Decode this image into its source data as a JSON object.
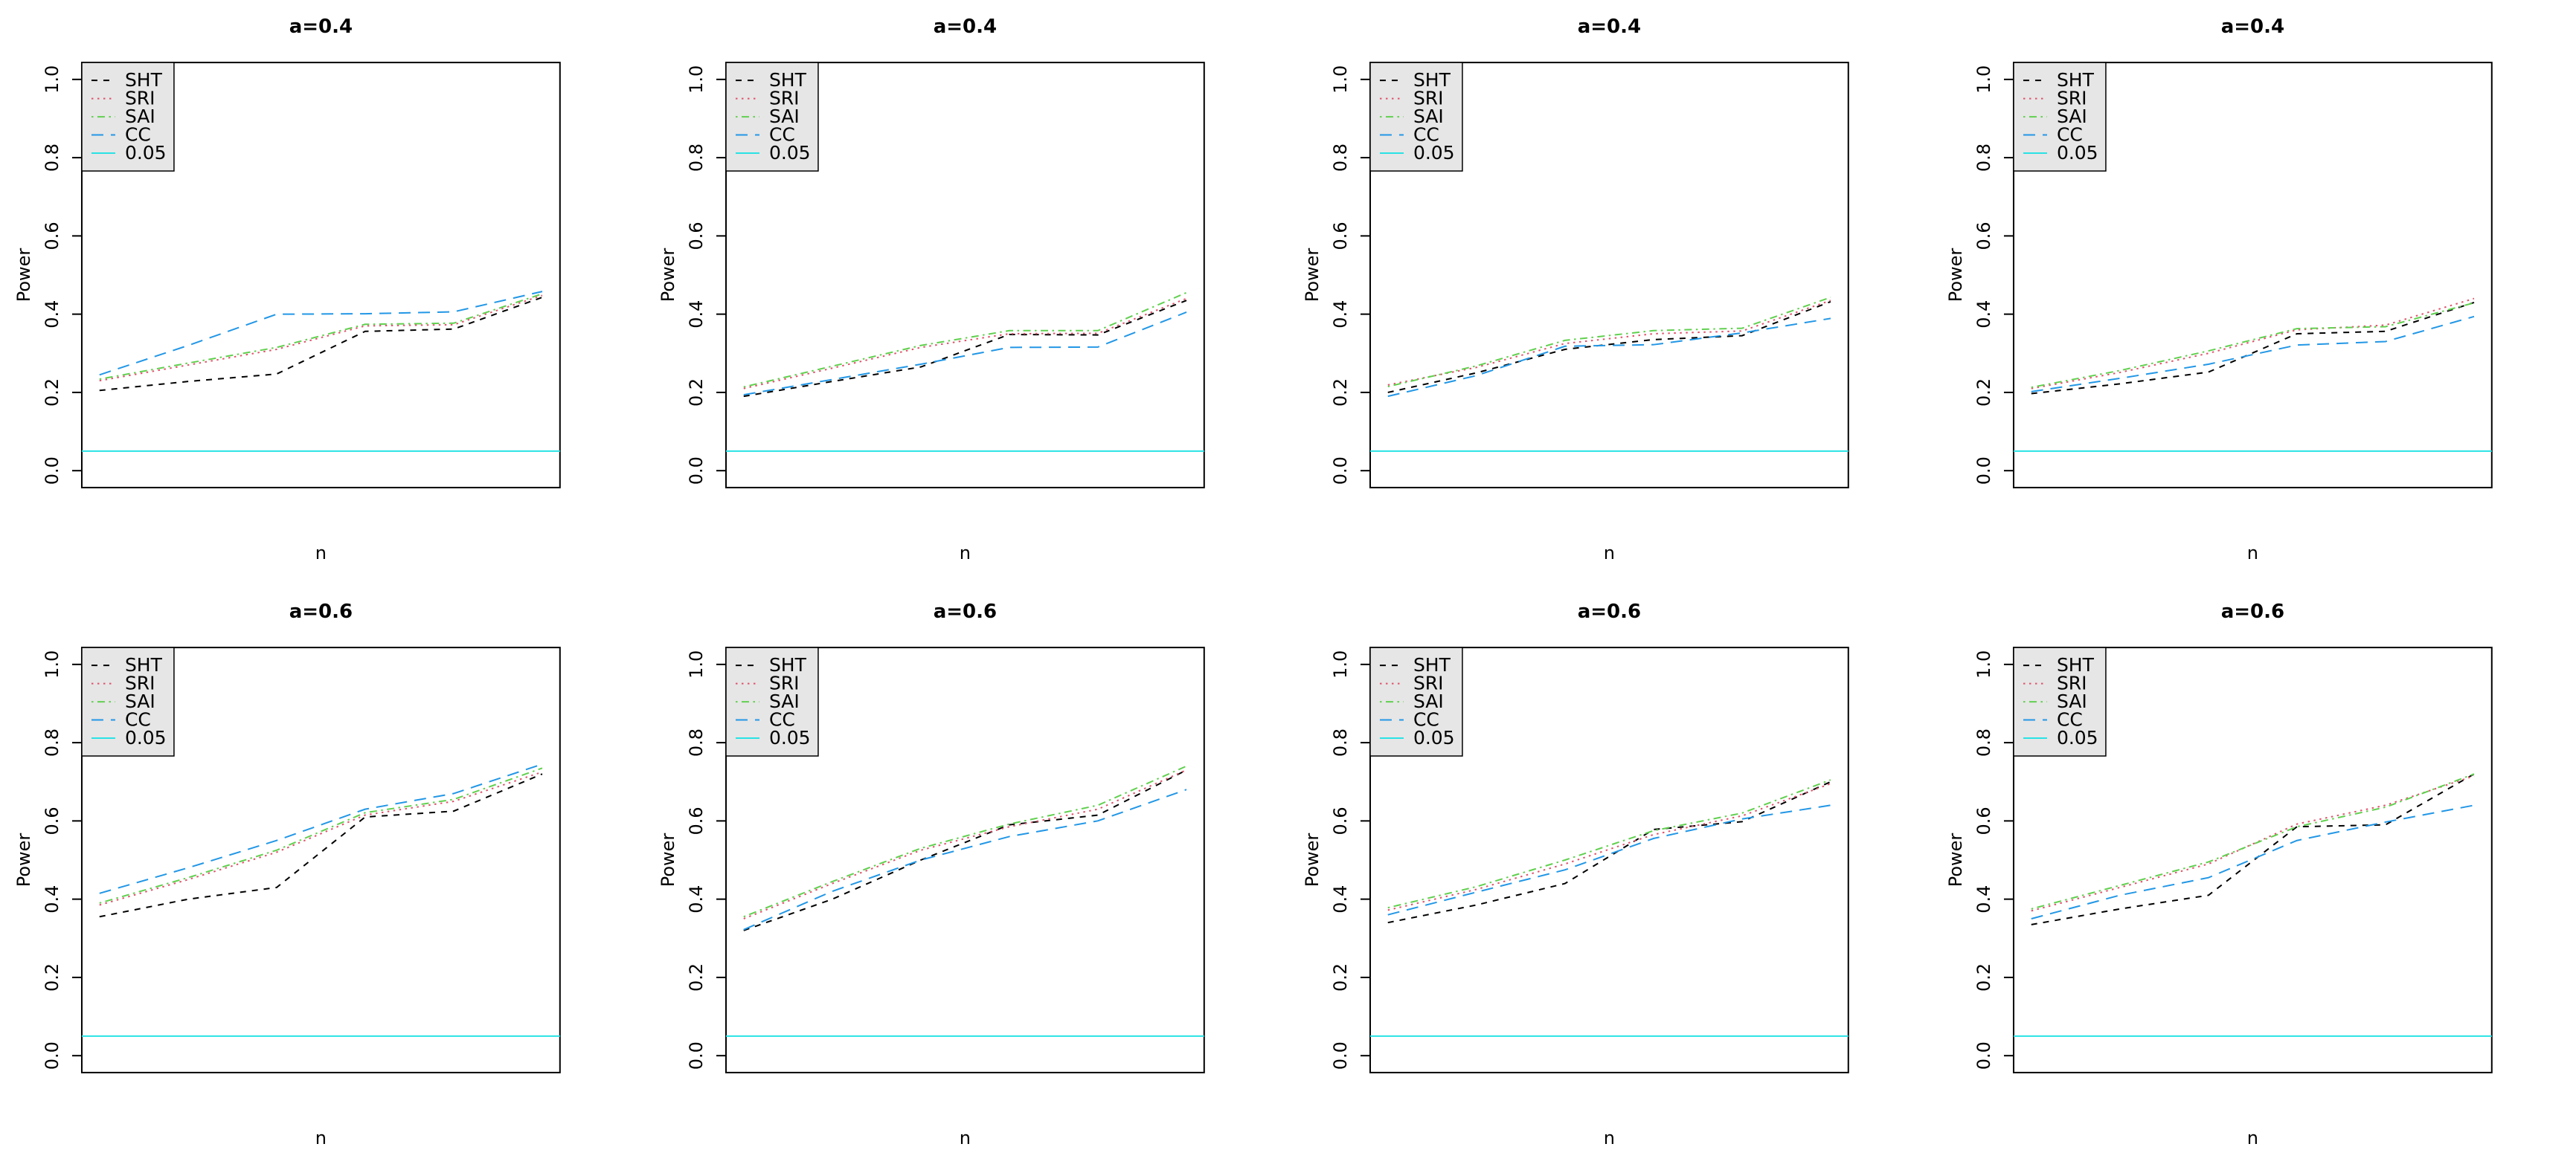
{
  "page": {
    "background": "#ffffff",
    "grid": {
      "rows": 2,
      "cols": 4
    }
  },
  "axes": {
    "ylabel": "Power",
    "xlabel": "n",
    "ylim": [
      0,
      1
    ],
    "yticks": [
      "0.0",
      "0.2",
      "0.4",
      "0.6",
      "0.8",
      "1.0"
    ],
    "ytick_values": [
      0.0,
      0.2,
      0.4,
      0.6,
      0.8,
      1.0
    ],
    "x_axis_ticks_shown": false
  },
  "legend": {
    "background": "#E6E6E6",
    "border": "#000000",
    "entries": [
      {
        "label": "SHT",
        "color": "#000000",
        "linetype": "dashed"
      },
      {
        "label": "SRI",
        "color": "#DF536B",
        "linetype": "dotted"
      },
      {
        "label": "SAI",
        "color": "#61D04F",
        "linetype": "dotdash"
      },
      {
        "label": "CC",
        "color": "#2297E6",
        "linetype": "longdash"
      },
      {
        "label": "0.05",
        "color": "#28E2E5",
        "linetype": "solid"
      }
    ]
  },
  "chart_data": [
    {
      "type": "line",
      "title": "a=0.4",
      "xlabel": "n",
      "ylabel": "Power",
      "x": [
        1,
        2,
        3,
        4,
        5,
        6
      ],
      "ylim": [
        0,
        1
      ],
      "legend_position": "topleft",
      "series": [
        {
          "name": "SHT",
          "values": [
            0.205,
            0.228,
            0.247,
            0.356,
            0.362,
            0.443
          ]
        },
        {
          "name": "SRI",
          "values": [
            0.23,
            0.27,
            0.31,
            0.37,
            0.373,
            0.448
          ]
        },
        {
          "name": "SAI",
          "values": [
            0.234,
            0.275,
            0.315,
            0.374,
            0.377,
            0.452
          ]
        },
        {
          "name": "CC",
          "values": [
            0.245,
            0.32,
            0.4,
            0.401,
            0.406,
            0.458
          ]
        }
      ],
      "hline": {
        "label": "0.05",
        "value": 0.05
      }
    },
    {
      "type": "line",
      "title": "a=0.4",
      "xlabel": "n",
      "ylabel": "Power",
      "x": [
        1,
        2,
        3,
        4,
        5,
        6
      ],
      "ylim": [
        0,
        1
      ],
      "legend_position": "topleft",
      "series": [
        {
          "name": "SHT",
          "values": [
            0.19,
            0.228,
            0.265,
            0.348,
            0.347,
            0.435
          ]
        },
        {
          "name": "SRI",
          "values": [
            0.21,
            0.262,
            0.315,
            0.35,
            0.351,
            0.44
          ]
        },
        {
          "name": "SAI",
          "values": [
            0.214,
            0.267,
            0.32,
            0.358,
            0.358,
            0.455
          ]
        },
        {
          "name": "CC",
          "values": [
            0.194,
            0.233,
            0.272,
            0.315,
            0.316,
            0.405
          ]
        }
      ],
      "hline": {
        "label": "0.05",
        "value": 0.05
      }
    },
    {
      "type": "line",
      "title": "a=0.4",
      "xlabel": "n",
      "ylabel": "Power",
      "x": [
        1,
        2,
        3,
        4,
        5,
        6
      ],
      "ylim": [
        0,
        1
      ],
      "legend_position": "topleft",
      "series": [
        {
          "name": "SHT",
          "values": [
            0.2,
            0.25,
            0.31,
            0.335,
            0.345,
            0.432
          ]
        },
        {
          "name": "SRI",
          "values": [
            0.219,
            0.264,
            0.325,
            0.35,
            0.357,
            0.435
          ]
        },
        {
          "name": "SAI",
          "values": [
            0.215,
            0.268,
            0.333,
            0.358,
            0.364,
            0.443
          ]
        },
        {
          "name": "CC",
          "values": [
            0.19,
            0.243,
            0.318,
            0.322,
            0.352,
            0.389
          ]
        }
      ],
      "hline": {
        "label": "0.05",
        "value": 0.05
      }
    },
    {
      "type": "line",
      "title": "a=0.4",
      "xlabel": "n",
      "ylabel": "Power",
      "x": [
        1,
        2,
        3,
        4,
        5,
        6
      ],
      "ylim": [
        0,
        1
      ],
      "legend_position": "topleft",
      "series": [
        {
          "name": "SHT",
          "values": [
            0.197,
            0.222,
            0.252,
            0.35,
            0.356,
            0.43
          ]
        },
        {
          "name": "SRI",
          "values": [
            0.21,
            0.251,
            0.3,
            0.36,
            0.372,
            0.44
          ]
        },
        {
          "name": "SAI",
          "values": [
            0.213,
            0.256,
            0.306,
            0.363,
            0.368,
            0.429
          ]
        },
        {
          "name": "CC",
          "values": [
            0.202,
            0.236,
            0.272,
            0.321,
            0.33,
            0.394
          ]
        }
      ],
      "hline": {
        "label": "0.05",
        "value": 0.05
      }
    },
    {
      "type": "line",
      "title": "a=0.6",
      "xlabel": "n",
      "ylabel": "Power",
      "x": [
        1,
        2,
        3,
        4,
        5,
        6
      ],
      "ylim": [
        0,
        1
      ],
      "legend_position": "topleft",
      "series": [
        {
          "name": "SHT",
          "values": [
            0.355,
            0.4,
            0.43,
            0.61,
            0.625,
            0.72
          ]
        },
        {
          "name": "SRI",
          "values": [
            0.385,
            0.45,
            0.52,
            0.615,
            0.65,
            0.725
          ]
        },
        {
          "name": "SAI",
          "values": [
            0.39,
            0.455,
            0.525,
            0.621,
            0.655,
            0.735
          ]
        },
        {
          "name": "CC",
          "values": [
            0.415,
            0.48,
            0.55,
            0.63,
            0.67,
            0.745
          ]
        }
      ],
      "hline": {
        "label": "0.05",
        "value": 0.05
      }
    },
    {
      "type": "line",
      "title": "a=0.6",
      "xlabel": "n",
      "ylabel": "Power",
      "x": [
        1,
        2,
        3,
        4,
        5,
        6
      ],
      "ylim": [
        0,
        1
      ],
      "legend_position": "topleft",
      "series": [
        {
          "name": "SHT",
          "values": [
            0.32,
            0.4,
            0.5,
            0.59,
            0.615,
            0.73
          ]
        },
        {
          "name": "SRI",
          "values": [
            0.35,
            0.44,
            0.525,
            0.585,
            0.63,
            0.73
          ]
        },
        {
          "name": "SAI",
          "values": [
            0.355,
            0.445,
            0.53,
            0.592,
            0.64,
            0.74
          ]
        },
        {
          "name": "CC",
          "values": [
            0.322,
            0.42,
            0.5,
            0.56,
            0.6,
            0.68
          ]
        }
      ],
      "hline": {
        "label": "0.05",
        "value": 0.05
      }
    },
    {
      "type": "line",
      "title": "a=0.6",
      "xlabel": "n",
      "ylabel": "Power",
      "x": [
        1,
        2,
        3,
        4,
        5,
        6
      ],
      "ylim": [
        0,
        1
      ],
      "legend_position": "topleft",
      "series": [
        {
          "name": "SHT",
          "values": [
            0.34,
            0.385,
            0.44,
            0.578,
            0.598,
            0.7
          ]
        },
        {
          "name": "SRI",
          "values": [
            0.372,
            0.425,
            0.49,
            0.565,
            0.613,
            0.695
          ]
        },
        {
          "name": "SAI",
          "values": [
            0.378,
            0.432,
            0.5,
            0.575,
            0.62,
            0.705
          ]
        },
        {
          "name": "CC",
          "values": [
            0.36,
            0.418,
            0.475,
            0.555,
            0.605,
            0.64
          ]
        }
      ],
      "hline": {
        "label": "0.05",
        "value": 0.05
      }
    },
    {
      "type": "line",
      "title": "a=0.6",
      "xlabel": "n",
      "ylabel": "Power",
      "x": [
        1,
        2,
        3,
        4,
        5,
        6
      ],
      "ylim": [
        0,
        1
      ],
      "legend_position": "topleft",
      "series": [
        {
          "name": "SHT",
          "values": [
            0.335,
            0.375,
            0.41,
            0.585,
            0.59,
            0.72
          ]
        },
        {
          "name": "SRI",
          "values": [
            0.37,
            0.43,
            0.49,
            0.592,
            0.64,
            0.715
          ]
        },
        {
          "name": "SAI",
          "values": [
            0.375,
            0.435,
            0.495,
            0.585,
            0.635,
            0.72
          ]
        },
        {
          "name": "CC",
          "values": [
            0.35,
            0.41,
            0.455,
            0.55,
            0.597,
            0.64
          ]
        }
      ],
      "hline": {
        "label": "0.05",
        "value": 0.05
      }
    }
  ]
}
